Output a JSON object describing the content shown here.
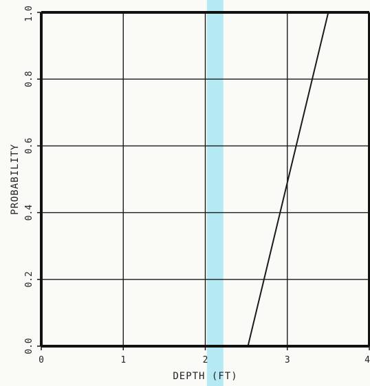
{
  "chart_data": {
    "type": "line",
    "title": "",
    "xlabel": "DEPTH (FT)",
    "ylabel": "PROBABILITY",
    "xlim": [
      0,
      4
    ],
    "ylim": [
      0.0,
      1.0
    ],
    "x_ticks": [
      0,
      1,
      2,
      3,
      4
    ],
    "x_tick_labels": [
      "0",
      "1",
      "2",
      "3",
      "4"
    ],
    "y_ticks": [
      0.0,
      0.2,
      0.4,
      0.6,
      0.8,
      1.0
    ],
    "y_tick_labels": [
      "0.0",
      "0.2",
      "0.4",
      "0.6",
      "0.8",
      "1.0"
    ],
    "grid": true,
    "series": [
      {
        "x": [
          2.52,
          3.5
        ],
        "y": [
          0.0,
          1.0
        ]
      }
    ],
    "highlight_band": {
      "x_range": [
        2.02,
        2.22
      ],
      "color": "#9ee3f2"
    },
    "colors": {
      "line": "#1a1a1a",
      "grid": "#1a1a1a",
      "frame": "#111111"
    }
  }
}
